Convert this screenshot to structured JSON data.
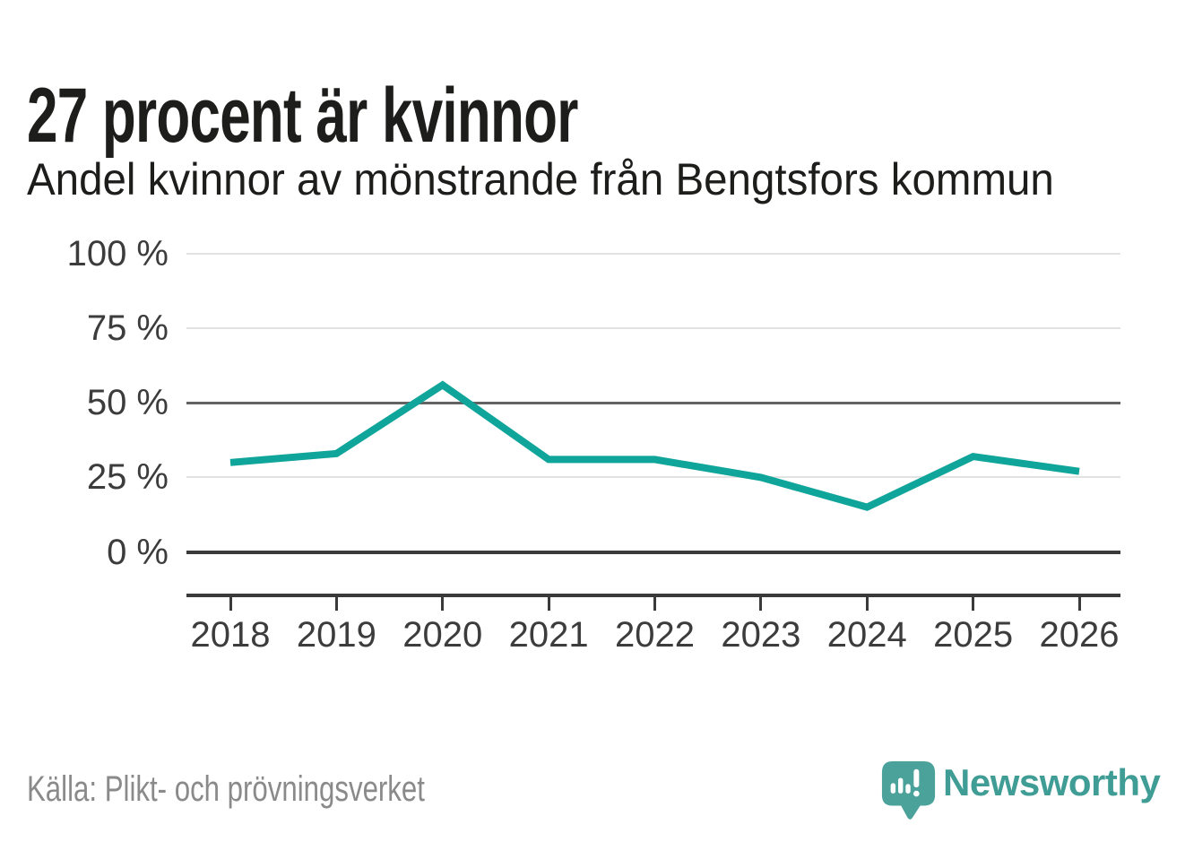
{
  "header": {
    "title": "27 procent är kvinnor",
    "subtitle": "Andel kvinnor av mönstrande från Bengtsfors kommun"
  },
  "chart_data": {
    "type": "line",
    "title": "27 procent är kvinnor",
    "subtitle": "Andel kvinnor av mönstrande från Bengtsfors kommun",
    "categories": [
      "2018",
      "2019",
      "2020",
      "2021",
      "2022",
      "2023",
      "2024",
      "2025",
      "2026"
    ],
    "series": [
      {
        "name": "Andel kvinnor av mönstrande",
        "values": [
          30,
          33,
          56,
          31,
          31,
          25,
          15,
          32,
          27
        ]
      }
    ],
    "unit": "%",
    "ylim": [
      0,
      100
    ],
    "yticks": [
      0,
      25,
      50,
      75,
      100
    ],
    "ytick_suffix": " %",
    "grid": "horizontal",
    "legend": "none",
    "line_color": "#10a59a"
  },
  "footer": {
    "source": "Källa: Plikt- och prövningsverket",
    "brand": "Newsworthy"
  },
  "colors": {
    "line": "#10a59a",
    "grid_light": "#e2e2e2",
    "grid_mid": "#636363",
    "axis_dark": "#3a3a3a",
    "title_text": "#1d1d1b",
    "axis_text": "#3c3c3c",
    "source_text": "#8a8a8a",
    "brand_teal": "#3f9d95",
    "logo_fill": "#4aa29b"
  }
}
